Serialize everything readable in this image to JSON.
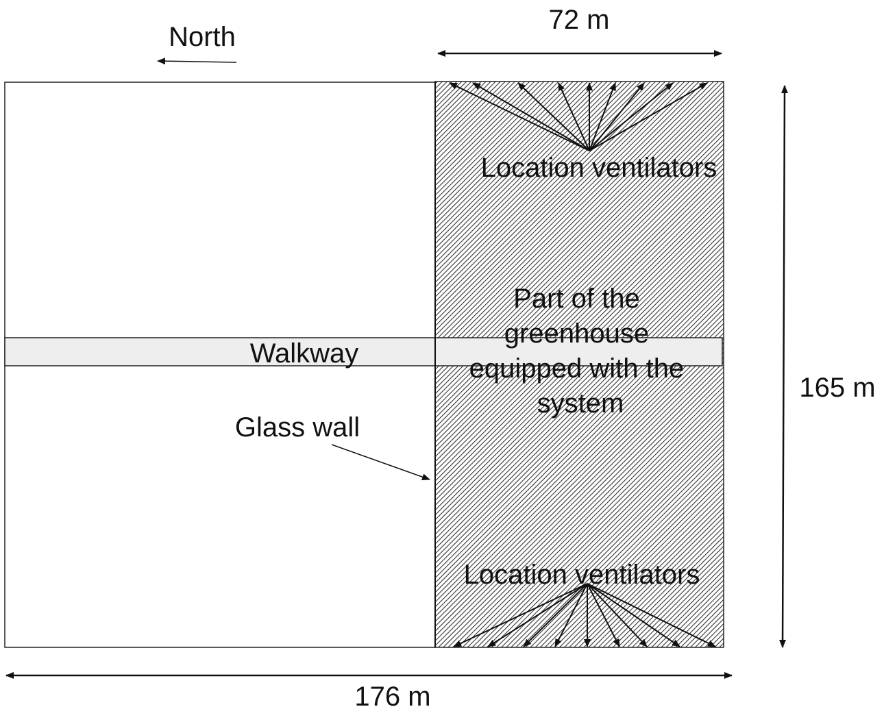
{
  "diagram": {
    "north_label": "North",
    "width_system_label": "72 m",
    "total_width_label": "176 m",
    "height_label": "165 m",
    "walkway_label": "Walkway",
    "glass_wall_label": "Glass wall",
    "ventilators_top_label": "Location ventilators",
    "ventilators_bottom_label": "Location ventilators",
    "system_part_label": [
      "Part of the",
      "greenhouse",
      "equipped with the",
      "system"
    ]
  }
}
